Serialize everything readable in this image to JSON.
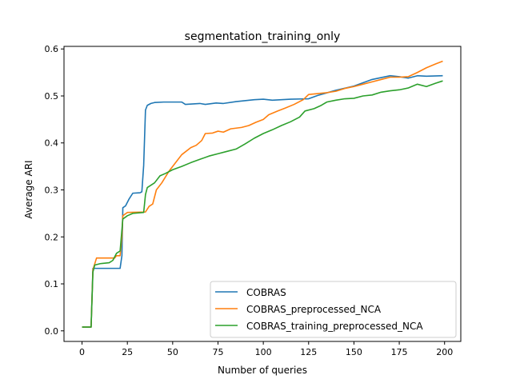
{
  "chart_data": {
    "type": "line",
    "title": "segmentation_training_only",
    "xlabel": "Number of queries",
    "ylabel": "Average ARI",
    "xlim": [
      -9.95,
      208.95
    ],
    "ylim": [
      -0.0225,
      0.6055
    ],
    "xticks": [
      0,
      25,
      50,
      75,
      100,
      125,
      150,
      175,
      200
    ],
    "yticks": [
      0.0,
      0.1,
      0.2,
      0.3,
      0.4,
      0.5,
      0.6
    ],
    "xtick_labels": [
      "0",
      "25",
      "50",
      "75",
      "100",
      "125",
      "150",
      "175",
      "200"
    ],
    "ytick_labels": [
      "0.0",
      "0.1",
      "0.2",
      "0.3",
      "0.4",
      "0.5",
      "0.6"
    ],
    "grid": false,
    "legend_position": "lower-right",
    "series": [
      {
        "name": "COBRAS",
        "color": "#1f77b4",
        "points": [
          [
            0,
            0.008
          ],
          [
            5,
            0.008
          ],
          [
            6,
            0.133
          ],
          [
            21,
            0.133
          ],
          [
            22,
            0.16
          ],
          [
            22.5,
            0.262
          ],
          [
            24,
            0.266
          ],
          [
            26,
            0.281
          ],
          [
            28,
            0.293
          ],
          [
            32,
            0.294
          ],
          [
            33,
            0.296
          ],
          [
            34,
            0.352
          ],
          [
            35,
            0.47
          ],
          [
            36,
            0.48
          ],
          [
            38,
            0.484
          ],
          [
            40,
            0.486
          ],
          [
            45,
            0.487
          ],
          [
            55,
            0.487
          ],
          [
            57,
            0.482
          ],
          [
            65,
            0.484
          ],
          [
            68,
            0.482
          ],
          [
            74,
            0.485
          ],
          [
            78,
            0.484
          ],
          [
            85,
            0.488
          ],
          [
            95,
            0.492
          ],
          [
            100,
            0.493
          ],
          [
            105,
            0.491
          ],
          [
            115,
            0.493
          ],
          [
            125,
            0.494
          ],
          [
            130,
            0.501
          ],
          [
            140,
            0.512
          ],
          [
            150,
            0.521
          ],
          [
            160,
            0.535
          ],
          [
            170,
            0.543
          ],
          [
            175,
            0.541
          ],
          [
            180,
            0.538
          ],
          [
            185,
            0.543
          ],
          [
            190,
            0.542
          ],
          [
            199,
            0.543
          ]
        ]
      },
      {
        "name": "COBRAS_preprocessed_NCA",
        "color": "#ff7f0e",
        "points": [
          [
            0,
            0.008
          ],
          [
            5,
            0.008
          ],
          [
            6,
            0.13
          ],
          [
            8,
            0.155
          ],
          [
            16,
            0.155
          ],
          [
            18,
            0.155
          ],
          [
            19,
            0.16
          ],
          [
            21,
            0.16
          ],
          [
            22,
            0.2
          ],
          [
            22.5,
            0.245
          ],
          [
            25,
            0.252
          ],
          [
            35,
            0.253
          ],
          [
            37,
            0.265
          ],
          [
            39,
            0.27
          ],
          [
            41,
            0.3
          ],
          [
            44,
            0.315
          ],
          [
            48,
            0.34
          ],
          [
            52,
            0.36
          ],
          [
            55,
            0.375
          ],
          [
            60,
            0.39
          ],
          [
            63,
            0.395
          ],
          [
            66,
            0.405
          ],
          [
            68,
            0.42
          ],
          [
            72,
            0.421
          ],
          [
            75,
            0.425
          ],
          [
            78,
            0.423
          ],
          [
            82,
            0.43
          ],
          [
            88,
            0.433
          ],
          [
            92,
            0.437
          ],
          [
            96,
            0.444
          ],
          [
            100,
            0.45
          ],
          [
            103,
            0.46
          ],
          [
            108,
            0.468
          ],
          [
            112,
            0.474
          ],
          [
            117,
            0.482
          ],
          [
            122,
            0.492
          ],
          [
            125,
            0.503
          ],
          [
            130,
            0.505
          ],
          [
            135,
            0.507
          ],
          [
            140,
            0.51
          ],
          [
            145,
            0.516
          ],
          [
            150,
            0.52
          ],
          [
            155,
            0.525
          ],
          [
            160,
            0.53
          ],
          [
            165,
            0.535
          ],
          [
            170,
            0.54
          ],
          [
            175,
            0.54
          ],
          [
            180,
            0.541
          ],
          [
            185,
            0.55
          ],
          [
            190,
            0.56
          ],
          [
            195,
            0.568
          ],
          [
            199,
            0.574
          ]
        ]
      },
      {
        "name": "COBRAS_training_preprocessed_NCA",
        "color": "#2ca02c",
        "points": [
          [
            0,
            0.008
          ],
          [
            5,
            0.008
          ],
          [
            6,
            0.125
          ],
          [
            7,
            0.14
          ],
          [
            10,
            0.143
          ],
          [
            15,
            0.145
          ],
          [
            17,
            0.15
          ],
          [
            19,
            0.165
          ],
          [
            21,
            0.17
          ],
          [
            22,
            0.215
          ],
          [
            22.5,
            0.238
          ],
          [
            25,
            0.245
          ],
          [
            28,
            0.25
          ],
          [
            34,
            0.252
          ],
          [
            35,
            0.29
          ],
          [
            36,
            0.305
          ],
          [
            40,
            0.315
          ],
          [
            43,
            0.33
          ],
          [
            46,
            0.335
          ],
          [
            50,
            0.343
          ],
          [
            55,
            0.35
          ],
          [
            60,
            0.358
          ],
          [
            65,
            0.365
          ],
          [
            70,
            0.372
          ],
          [
            75,
            0.377
          ],
          [
            80,
            0.382
          ],
          [
            85,
            0.387
          ],
          [
            90,
            0.398
          ],
          [
            95,
            0.41
          ],
          [
            100,
            0.42
          ],
          [
            105,
            0.428
          ],
          [
            110,
            0.437
          ],
          [
            115,
            0.445
          ],
          [
            120,
            0.455
          ],
          [
            123,
            0.468
          ],
          [
            128,
            0.473
          ],
          [
            132,
            0.48
          ],
          [
            135,
            0.487
          ],
          [
            140,
            0.491
          ],
          [
            145,
            0.494
          ],
          [
            150,
            0.495
          ],
          [
            155,
            0.5
          ],
          [
            160,
            0.502
          ],
          [
            165,
            0.508
          ],
          [
            170,
            0.511
          ],
          [
            175,
            0.513
          ],
          [
            180,
            0.517
          ],
          [
            185,
            0.525
          ],
          [
            190,
            0.52
          ],
          [
            195,
            0.527
          ],
          [
            199,
            0.532
          ]
        ]
      }
    ]
  }
}
